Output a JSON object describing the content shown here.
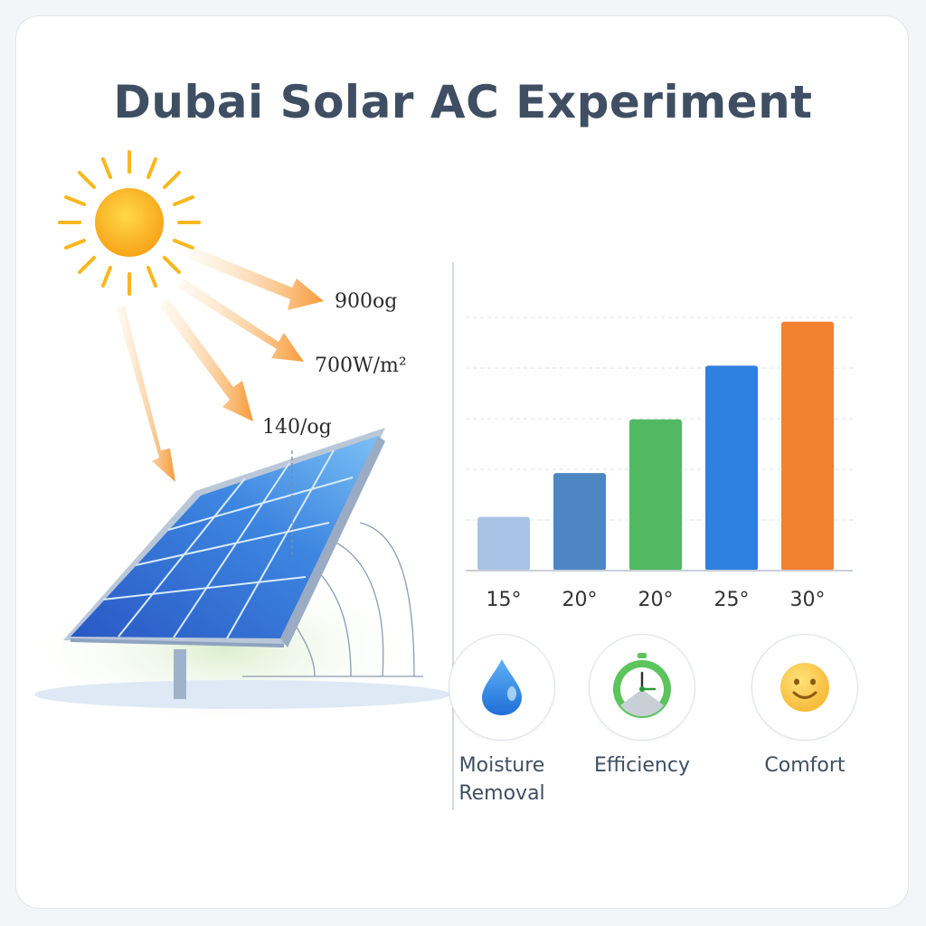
{
  "title": "Dubai Solar AC Experiment",
  "annotations": [
    "900og",
    "700W/m²",
    "140/og"
  ],
  "chart_data": {
    "type": "bar",
    "categories": [
      "15°",
      "20°",
      "20°",
      "25°",
      "30°"
    ],
    "values": [
      1.1,
      2.0,
      3.1,
      4.2,
      5.1
    ],
    "colors": [
      "#a9c3e6",
      "#4e86c3",
      "#52b862",
      "#2f7fe0",
      "#f2802f"
    ],
    "ylim": [
      0,
      5.8
    ],
    "grid": true
  },
  "metrics": [
    {
      "label": "Moisture Removal",
      "icon": "water-drop-icon"
    },
    {
      "label": "Efficiency",
      "icon": "gauge-clock-icon"
    },
    {
      "label": "Comfort",
      "icon": "smiley-face-icon"
    }
  ]
}
